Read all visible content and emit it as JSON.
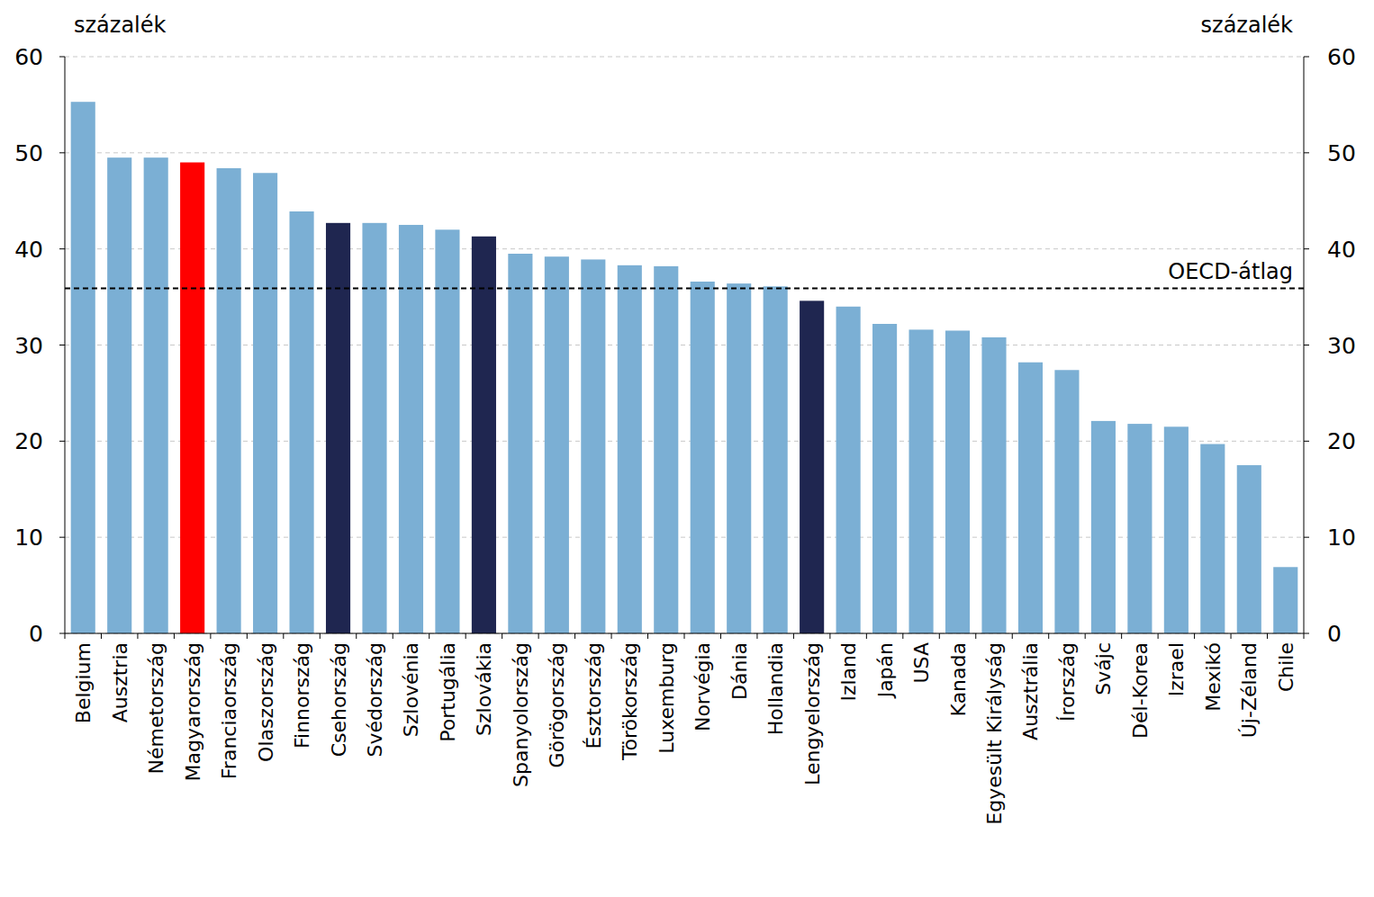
{
  "chart_data": {
    "type": "bar",
    "y_label": "százalék",
    "y2_label": "százalék",
    "categories": [
      "Belgium",
      "Ausztria",
      "Németország",
      "Magyarország",
      "Franciaország",
      "Olaszország",
      "Finnország",
      "Csehország",
      "Svédország",
      "Szlovénia",
      "Portugália",
      "Szlovákia",
      "Spanyolország",
      "Görögország",
      "Észtország",
      "Törökország",
      "Luxemburg",
      "Norvégia",
      "Dánia",
      "Hollandia",
      "Lengyelország",
      "Izland",
      "Japán",
      "USA",
      "Kanada",
      "Egyesült Királyság",
      "Ausztrália",
      "Írország",
      "Svájc",
      "Dél-Korea",
      "Izrael",
      "Mexikó",
      "Új-Zéland",
      "Chile"
    ],
    "values": [
      55.3,
      49.5,
      49.5,
      49.0,
      48.4,
      47.9,
      43.9,
      42.7,
      42.7,
      42.5,
      42.0,
      41.3,
      39.5,
      39.2,
      38.9,
      38.3,
      38.2,
      36.6,
      36.4,
      36.1,
      34.6,
      34.0,
      32.2,
      31.6,
      31.5,
      30.8,
      28.2,
      27.4,
      22.1,
      21.8,
      21.5,
      19.7,
      17.5,
      6.9
    ],
    "colors": [
      "#7bafd4",
      "#7bafd4",
      "#7bafd4",
      "#ff0000",
      "#7bafd4",
      "#7bafd4",
      "#7bafd4",
      "#1f2650",
      "#7bafd4",
      "#7bafd4",
      "#7bafd4",
      "#1f2650",
      "#7bafd4",
      "#7bafd4",
      "#7bafd4",
      "#7bafd4",
      "#7bafd4",
      "#7bafd4",
      "#7bafd4",
      "#7bafd4",
      "#1f2650",
      "#7bafd4",
      "#7bafd4",
      "#7bafd4",
      "#7bafd4",
      "#7bafd4",
      "#7bafd4",
      "#7bafd4",
      "#7bafd4",
      "#7bafd4",
      "#7bafd4",
      "#7bafd4",
      "#7bafd4",
      "#7bafd4"
    ],
    "ylim": [
      0,
      60
    ],
    "yticks": [
      0,
      10,
      20,
      30,
      40,
      50,
      60
    ],
    "y2lim": [
      0,
      60
    ],
    "y2ticks": [
      0,
      10,
      20,
      30,
      40,
      50,
      60
    ],
    "grid": true,
    "annotations": [
      {
        "text": "OECD-átlag",
        "value": 35.9
      }
    ]
  }
}
